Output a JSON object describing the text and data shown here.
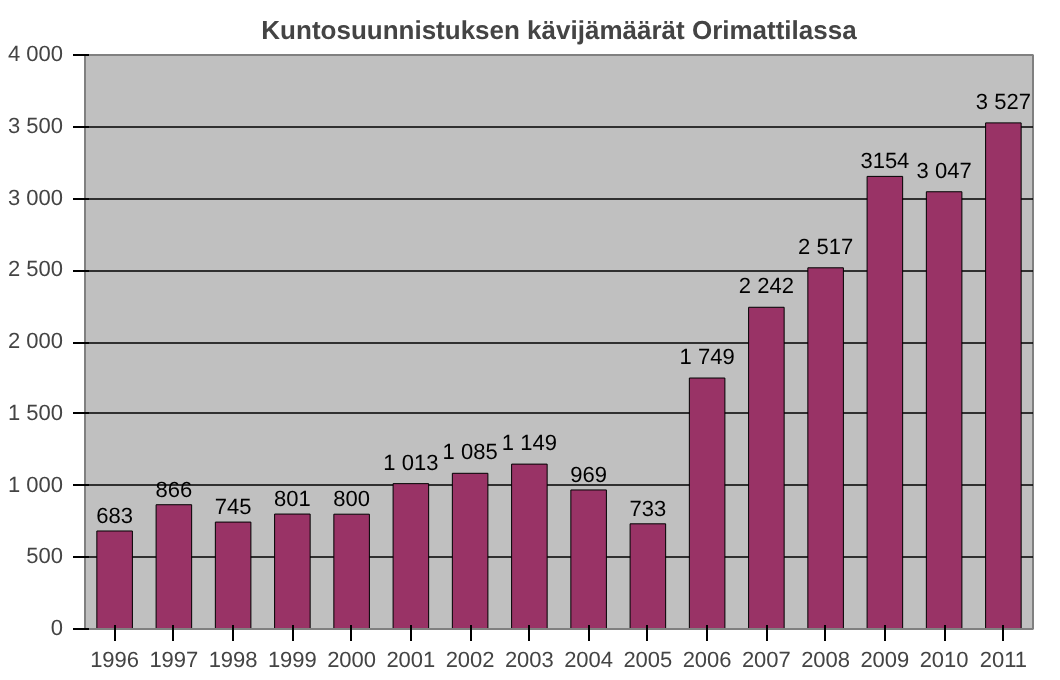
{
  "chart_data": {
    "type": "bar",
    "title": "Kuntosuunnistuksen kävijämäärät Orimattilassa",
    "categories": [
      "1996",
      "1997",
      "1998",
      "1999",
      "2000",
      "2001",
      "2002",
      "2003",
      "2004",
      "2005",
      "2006",
      "2007",
      "2008",
      "2009",
      "2010",
      "2011"
    ],
    "values": [
      683,
      866,
      745,
      801,
      800,
      1013,
      1085,
      1149,
      969,
      733,
      1749,
      2242,
      2517,
      3154,
      3047,
      3527
    ],
    "value_labels": [
      "683",
      "866",
      "745",
      "801",
      "800",
      "1 013",
      "1 085",
      "1 149",
      "969",
      "733",
      "1 749",
      "2 242",
      "2 517",
      "3154",
      "3 047",
      "3 527"
    ],
    "color": "#993366",
    "ylim": [
      0,
      4000
    ],
    "yticks": [
      0,
      500,
      {
        "value": 1000,
        "label": "1 000"
      },
      {
        "value": 1500,
        "label": "1 500"
      },
      {
        "value": 2000,
        "label": "2 000"
      },
      {
        "value": 2500,
        "label": "2 500"
      },
      {
        "value": 3000,
        "label": "3 000"
      },
      {
        "value": 3500,
        "label": "3 500"
      },
      {
        "value": 4000,
        "label": "4 000"
      }
    ],
    "grid": "y"
  }
}
